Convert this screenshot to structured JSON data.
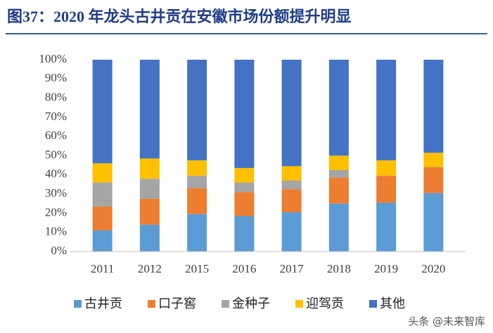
{
  "chart_data": {
    "type": "stacked_bar",
    "title": "图37：2020 年龙头古井贡在安徽市场份额提升明显",
    "categories": [
      "2011",
      "2012",
      "2015",
      "2016",
      "2017",
      "2018",
      "2019",
      "2020"
    ],
    "series": [
      {
        "name": "古井贡",
        "color": "#5b9bd5",
        "values": [
          11,
          14,
          19.5,
          18.5,
          20.5,
          25,
          25.5,
          30.5
        ]
      },
      {
        "name": "口子窖",
        "color": "#ed7d31",
        "values": [
          12.5,
          13.5,
          13.5,
          12.5,
          12,
          13.5,
          14,
          13.5
        ]
      },
      {
        "name": "金种子",
        "color": "#a5a5a5",
        "values": [
          12.5,
          10.5,
          6.5,
          5,
          4.5,
          4,
          0,
          0
        ]
      },
      {
        "name": "迎驾贡",
        "color": "#ffc000",
        "values": [
          10,
          10.5,
          8,
          7.5,
          7.5,
          7.5,
          8,
          7.5
        ]
      },
      {
        "name": "其他",
        "color": "#4472c4",
        "values": [
          54,
          51.5,
          52.5,
          56.5,
          55.5,
          50,
          52.5,
          48.5
        ]
      }
    ],
    "ylim": [
      0,
      100
    ],
    "yticks": [
      {
        "value": 0,
        "label": "0%"
      },
      {
        "value": 10,
        "label": "10%"
      },
      {
        "value": 20,
        "label": "20%"
      },
      {
        "value": 30,
        "label": "30%"
      },
      {
        "value": 40,
        "label": "40%"
      },
      {
        "value": 50,
        "label": "50%"
      },
      {
        "value": 60,
        "label": "60%"
      },
      {
        "value": 70,
        "label": "70%"
      },
      {
        "value": 80,
        "label": "80%"
      },
      {
        "value": 90,
        "label": "90%"
      },
      {
        "value": 100,
        "label": "100%"
      }
    ],
    "grid": false,
    "legend": "bottom",
    "watermark": "头条 @未来智库"
  }
}
